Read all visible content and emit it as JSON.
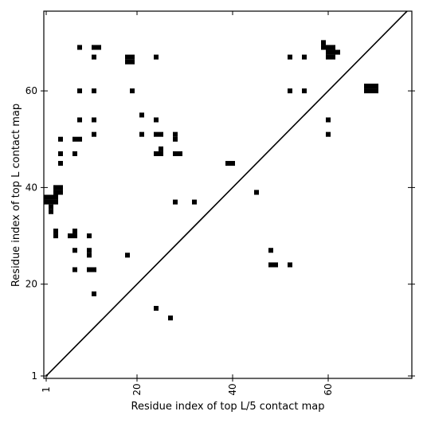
{
  "chart_data": {
    "type": "heatmap",
    "title": "",
    "xlabel": "Residue index of top L/5 contact map",
    "ylabel": "Residue index of top L contact map",
    "xlim": [
      0.5,
      77.5
    ],
    "ylim": [
      0.5,
      76.5
    ],
    "x_ticks": [
      1,
      20,
      40,
      60
    ],
    "y_ticks": [
      1,
      20,
      40,
      60
    ],
    "x_tick_labels": [
      "1",
      "20",
      "40",
      "60"
    ],
    "y_tick_labels": [
      "1",
      "20",
      "40",
      "60"
    ],
    "x_tick_label_rotation": 270,
    "diagonal_line": true,
    "colors": {
      "contact": "#000000",
      "background": "#ffffff",
      "line": "#000000"
    },
    "contacts": [
      [
        8,
        69
      ],
      [
        11,
        69
      ],
      [
        12,
        69
      ],
      [
        11,
        67
      ],
      [
        18,
        67
      ],
      [
        19,
        67
      ],
      [
        18,
        66
      ],
      [
        19,
        66
      ],
      [
        24,
        67
      ],
      [
        52,
        67
      ],
      [
        55,
        67
      ],
      [
        59,
        70
      ],
      [
        59,
        69
      ],
      [
        60,
        69
      ],
      [
        61,
        69
      ],
      [
        60,
        68
      ],
      [
        61,
        68
      ],
      [
        60,
        67
      ],
      [
        61,
        67
      ],
      [
        62,
        68
      ],
      [
        8,
        60
      ],
      [
        11,
        60
      ],
      [
        19,
        60
      ],
      [
        52,
        60
      ],
      [
        55,
        60
      ],
      [
        68,
        61
      ],
      [
        69,
        61
      ],
      [
        70,
        61
      ],
      [
        68,
        60
      ],
      [
        69,
        60
      ],
      [
        70,
        60
      ],
      [
        21,
        55
      ],
      [
        8,
        54
      ],
      [
        11,
        54
      ],
      [
        24,
        54
      ],
      [
        60,
        54
      ],
      [
        21,
        51
      ],
      [
        24,
        51
      ],
      [
        25,
        51
      ],
      [
        28,
        51
      ],
      [
        11,
        51
      ],
      [
        60,
        51
      ],
      [
        28,
        50
      ],
      [
        4,
        50
      ],
      [
        7,
        50
      ],
      [
        8,
        50
      ],
      [
        4,
        47
      ],
      [
        7,
        47
      ],
      [
        25,
        48
      ],
      [
        24,
        47
      ],
      [
        25,
        47
      ],
      [
        28,
        47
      ],
      [
        29,
        47
      ],
      [
        4,
        45
      ],
      [
        39,
        45
      ],
      [
        40,
        45
      ],
      [
        45,
        39
      ],
      [
        3,
        40
      ],
      [
        4,
        40
      ],
      [
        3,
        39
      ],
      [
        4,
        39
      ],
      [
        1,
        38
      ],
      [
        2,
        38
      ],
      [
        3,
        38
      ],
      [
        1,
        37
      ],
      [
        2,
        37
      ],
      [
        3,
        37
      ],
      [
        2,
        36
      ],
      [
        2,
        35
      ],
      [
        28,
        37
      ],
      [
        32,
        37
      ],
      [
        3,
        31
      ],
      [
        7,
        31
      ],
      [
        3,
        30
      ],
      [
        6,
        30
      ],
      [
        7,
        30
      ],
      [
        10,
        30
      ],
      [
        7,
        27
      ],
      [
        10,
        27
      ],
      [
        48,
        27
      ],
      [
        10,
        26
      ],
      [
        18,
        26
      ],
      [
        48,
        24
      ],
      [
        49,
        24
      ],
      [
        52,
        24
      ],
      [
        7,
        23
      ],
      [
        10,
        23
      ],
      [
        11,
        23
      ],
      [
        11,
        18
      ],
      [
        24,
        15
      ],
      [
        27,
        13
      ]
    ]
  }
}
